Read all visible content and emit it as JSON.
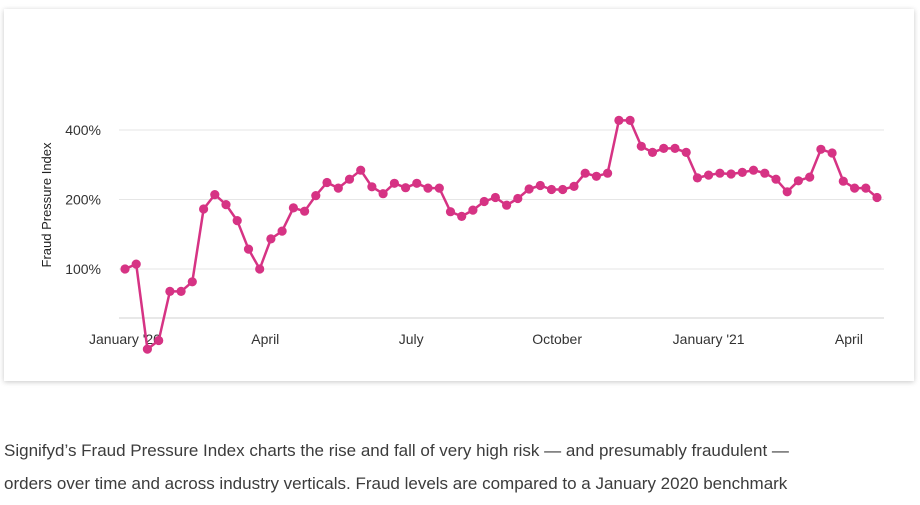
{
  "chart_data": {
    "type": "line",
    "ylabel": "Fraud Pressure Index",
    "y_scale": "log",
    "ylim": [
      30,
      620
    ],
    "y_ticks": [
      {
        "value": 100,
        "label": "100%"
      },
      {
        "value": 200,
        "label": "200%"
      },
      {
        "value": 400,
        "label": "400%"
      }
    ],
    "x_ticks": [
      "January '20",
      "April",
      "July",
      "October",
      "January '21",
      "April"
    ],
    "x_tick_positions": [
      0,
      12.5,
      25.5,
      38.5,
      52,
      64.5
    ],
    "grid": true,
    "color": "#d63384",
    "series": [
      {
        "values": [
          100,
          105,
          45,
          49,
          80,
          80,
          88,
          182,
          210,
          190,
          162,
          122,
          100,
          135,
          146,
          184,
          178,
          208,
          237,
          224,
          245,
          268,
          227,
          212,
          235,
          225,
          235,
          224,
          224,
          177,
          169,
          180,
          196,
          204,
          189,
          202,
          222,
          230,
          221,
          221,
          228,
          260,
          252,
          260,
          440,
          440,
          340,
          320,
          333,
          333,
          320,
          248,
          255,
          260,
          258,
          262,
          268,
          260,
          245,
          216,
          241,
          250,
          330,
          318,
          240,
          224,
          224,
          204
        ]
      }
    ]
  },
  "caption": {
    "line1": "Signifyd’s Fraud Pressure Index charts the rise and fall of very high risk — and presumably fraudulent —",
    "line2": "orders over time and across industry verticals. Fraud levels are compared to a January 2020 benchmark"
  }
}
